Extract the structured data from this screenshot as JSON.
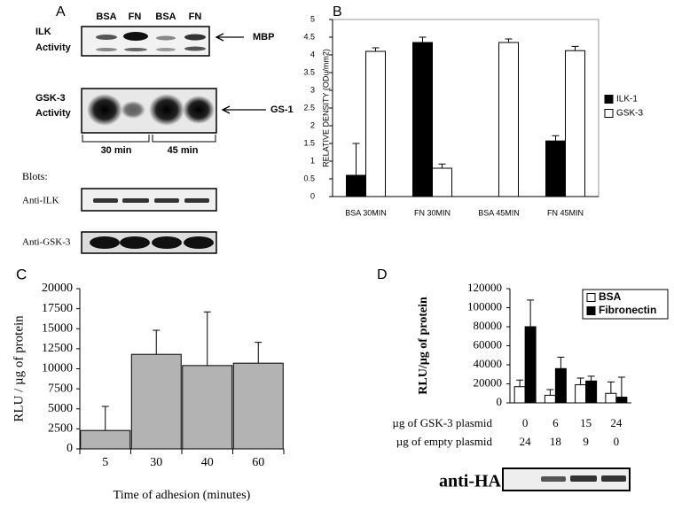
{
  "panel_a": {
    "letter": "A",
    "lanes": [
      "BSA",
      "FN",
      "BSA",
      "FN"
    ],
    "ilk_label": [
      "ILK",
      "Activity"
    ],
    "mbp": "MBP",
    "gsk_label": [
      "GSK-3",
      "Activity"
    ],
    "gs1": "GS-1",
    "times": [
      "30 min",
      "45 min"
    ],
    "blots_heading": "Blots:",
    "blots": [
      "Anti-ILK",
      "Anti-GSK-3"
    ]
  },
  "chart_data": [
    {
      "type": "bar",
      "panel_label": "B",
      "y_label": "RELATIVE DENSITY  (ODu/mm2)",
      "categories": [
        "BSA 30MIN",
        "FN 30MIN",
        "BSA 45MIN",
        "FN 45MIN"
      ],
      "series": [
        {
          "name": "ILK-1",
          "color": "#000000",
          "values": [
            0.6,
            4.35,
            0,
            1.57
          ],
          "errors": [
            0.9,
            0.15,
            null,
            0.15
          ]
        },
        {
          "name": "GSK-3",
          "color": "#ffffff",
          "values": [
            4.1,
            0.8,
            4.35,
            4.12
          ],
          "errors": [
            0.1,
            0.12,
            0.1,
            0.12
          ]
        }
      ],
      "ylim": [
        0,
        5
      ],
      "yticks": [
        0,
        0.5,
        1,
        1.5,
        2,
        2.5,
        3,
        3.5,
        4,
        4.5,
        5
      ],
      "legend": "right"
    },
    {
      "type": "bar",
      "panel_label": "C",
      "y_label": "RLU / µg of protein",
      "x_label": "Time of adhesion (minutes)",
      "categories": [
        "5",
        "30",
        "40",
        "60"
      ],
      "values": [
        2300,
        11800,
        10400,
        10700
      ],
      "errors": [
        3000,
        3000,
        6700,
        2600
      ],
      "color": "#b3b3b3",
      "ylim": [
        0,
        20000
      ],
      "yticks": [
        0,
        2500,
        5000,
        7500,
        10000,
        12500,
        15000,
        17500,
        20000
      ]
    },
    {
      "type": "bar",
      "panel_label": "D",
      "y_label": "RLU/µg of protein",
      "row_labels": [
        "µg of GSK-3 plasmid",
        "µg of empty plasmid"
      ],
      "categories": [
        "0",
        "6",
        "15",
        "24"
      ],
      "categories2": [
        "24",
        "18",
        "9",
        "0"
      ],
      "series": [
        {
          "name": "BSA",
          "color": "#ffffff",
          "values": [
            17000,
            8000,
            19000,
            10000
          ],
          "errors": [
            7000,
            6000,
            7000,
            12000
          ]
        },
        {
          "name": "Fibronectin",
          "color": "#000000",
          "values": [
            80000,
            36000,
            23000,
            6000
          ],
          "errors": [
            28000,
            12000,
            5000,
            21000
          ]
        }
      ],
      "ylim": [
        0,
        120000
      ],
      "yticks": [
        0,
        20000,
        40000,
        60000,
        80000,
        100000,
        120000
      ],
      "legend": "upper right",
      "blot_label": "anti-HA"
    }
  ]
}
